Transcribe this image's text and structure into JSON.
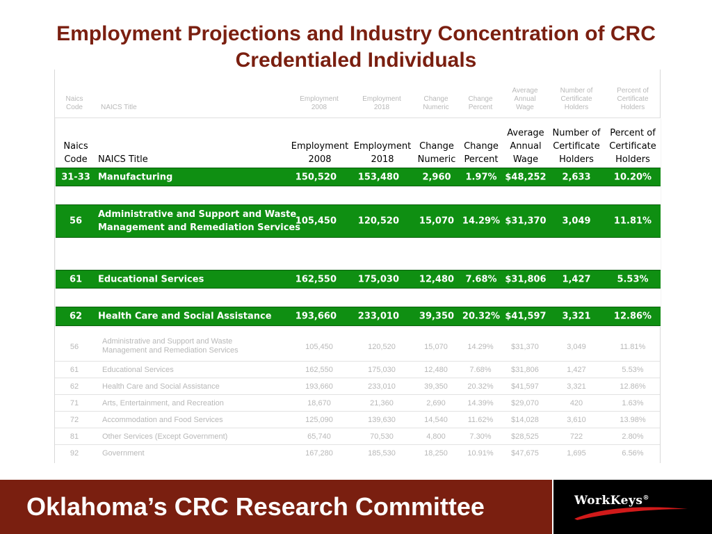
{
  "title": "Employment Projections and Industry Concentration of CRC Credentialed Individuals",
  "headers": {
    "naics": [
      "Naics",
      "Code"
    ],
    "title": "NAICS Title",
    "emp2008": [
      "Employment",
      "2008"
    ],
    "emp2018": [
      "Employment",
      "2018"
    ],
    "chg_num": [
      "Change",
      "Numeric"
    ],
    "chg_pct": [
      "Change",
      "Percent"
    ],
    "wage": [
      "Average",
      "Annual",
      "Wage"
    ],
    "num_holders": [
      "Number of",
      "Certificate",
      "Holders"
    ],
    "pct_holders": [
      "Percent of",
      "Certificate",
      "Holders"
    ]
  },
  "highlight_rows": [
    {
      "code": "31-33",
      "title": [
        "Manufacturing"
      ],
      "emp2008": "150,520",
      "emp2018": "153,480",
      "chg_num": "2,960",
      "chg_pct": "1.97%",
      "wage": "$48,252",
      "num": "2,633",
      "pct": "10.20%"
    },
    {
      "code": "56",
      "title": [
        "Administrative and Support and Waste",
        "Management and Remediation Services"
      ],
      "emp2008": "105,450",
      "emp2018": "120,520",
      "chg_num": "15,070",
      "chg_pct": "14.29%",
      "wage": "$31,370",
      "num": "3,049",
      "pct": "11.81%"
    },
    {
      "code": "61",
      "title": [
        "Educational Services"
      ],
      "emp2008": "162,550",
      "emp2018": "175,030",
      "chg_num": "12,480",
      "chg_pct": "7.68%",
      "wage": "$31,806",
      "num": "1,427",
      "pct": "5.53%"
    },
    {
      "code": "62",
      "title": [
        "Health Care and Social Assistance"
      ],
      "emp2008": "193,660",
      "emp2018": "233,010",
      "chg_num": "39,350",
      "chg_pct": "20.32%",
      "wage": "$41,597",
      "num": "3,321",
      "pct": "12.86%"
    }
  ],
  "faded_rows": [
    {
      "code": "56",
      "title": [
        "Administrative and Support and Waste",
        "Management and Remediation Services"
      ],
      "emp2008": "105,450",
      "emp2018": "120,520",
      "chg_num": "15,070",
      "chg_pct": "14.29%",
      "wage": "$31,370",
      "num": "3,049",
      "pct": "11.81%"
    },
    {
      "code": "61",
      "title": [
        "Educational Services"
      ],
      "emp2008": "162,550",
      "emp2018": "175,030",
      "chg_num": "12,480",
      "chg_pct": "7.68%",
      "wage": "$31,806",
      "num": "1,427",
      "pct": "5.53%"
    },
    {
      "code": "62",
      "title": [
        "Health Care and Social Assistance"
      ],
      "emp2008": "193,660",
      "emp2018": "233,010",
      "chg_num": "39,350",
      "chg_pct": "20.32%",
      "wage": "$41,597",
      "num": "3,321",
      "pct": "12.86%"
    },
    {
      "code": "71",
      "title": [
        "Arts, Entertainment, and Recreation"
      ],
      "emp2008": "18,670",
      "emp2018": "21,360",
      "chg_num": "2,690",
      "chg_pct": "14.39%",
      "wage": "$29,070",
      "num": "420",
      "pct": "1.63%"
    },
    {
      "code": "72",
      "title": [
        "Accommodation and Food Services"
      ],
      "emp2008": "125,090",
      "emp2018": "139,630",
      "chg_num": "14,540",
      "chg_pct": "11.62%",
      "wage": "$14,028",
      "num": "3,610",
      "pct": "13.98%"
    },
    {
      "code": "81",
      "title": [
        "Other Services (Except Government)"
      ],
      "emp2008": "65,740",
      "emp2018": "70,530",
      "chg_num": "4,800",
      "chg_pct": "7.30%",
      "wage": "$28,525",
      "num": "722",
      "pct": "2.80%"
    },
    {
      "code": "92",
      "title": [
        "Government"
      ],
      "emp2008": "167,280",
      "emp2018": "185,530",
      "chg_num": "18,250",
      "chg_pct": "10.91%",
      "wage": "$47,675",
      "num": "1,695",
      "pct": "6.56%"
    }
  ],
  "footer": "Oklahoma’s CRC Research Committee",
  "logo": "WorkKeys",
  "logo_mark": "®",
  "colors": {
    "title": "#7a1f10",
    "band": "#0f8f12",
    "footer": "#7a1f10",
    "logo_swoosh": "#d11a1a"
  }
}
